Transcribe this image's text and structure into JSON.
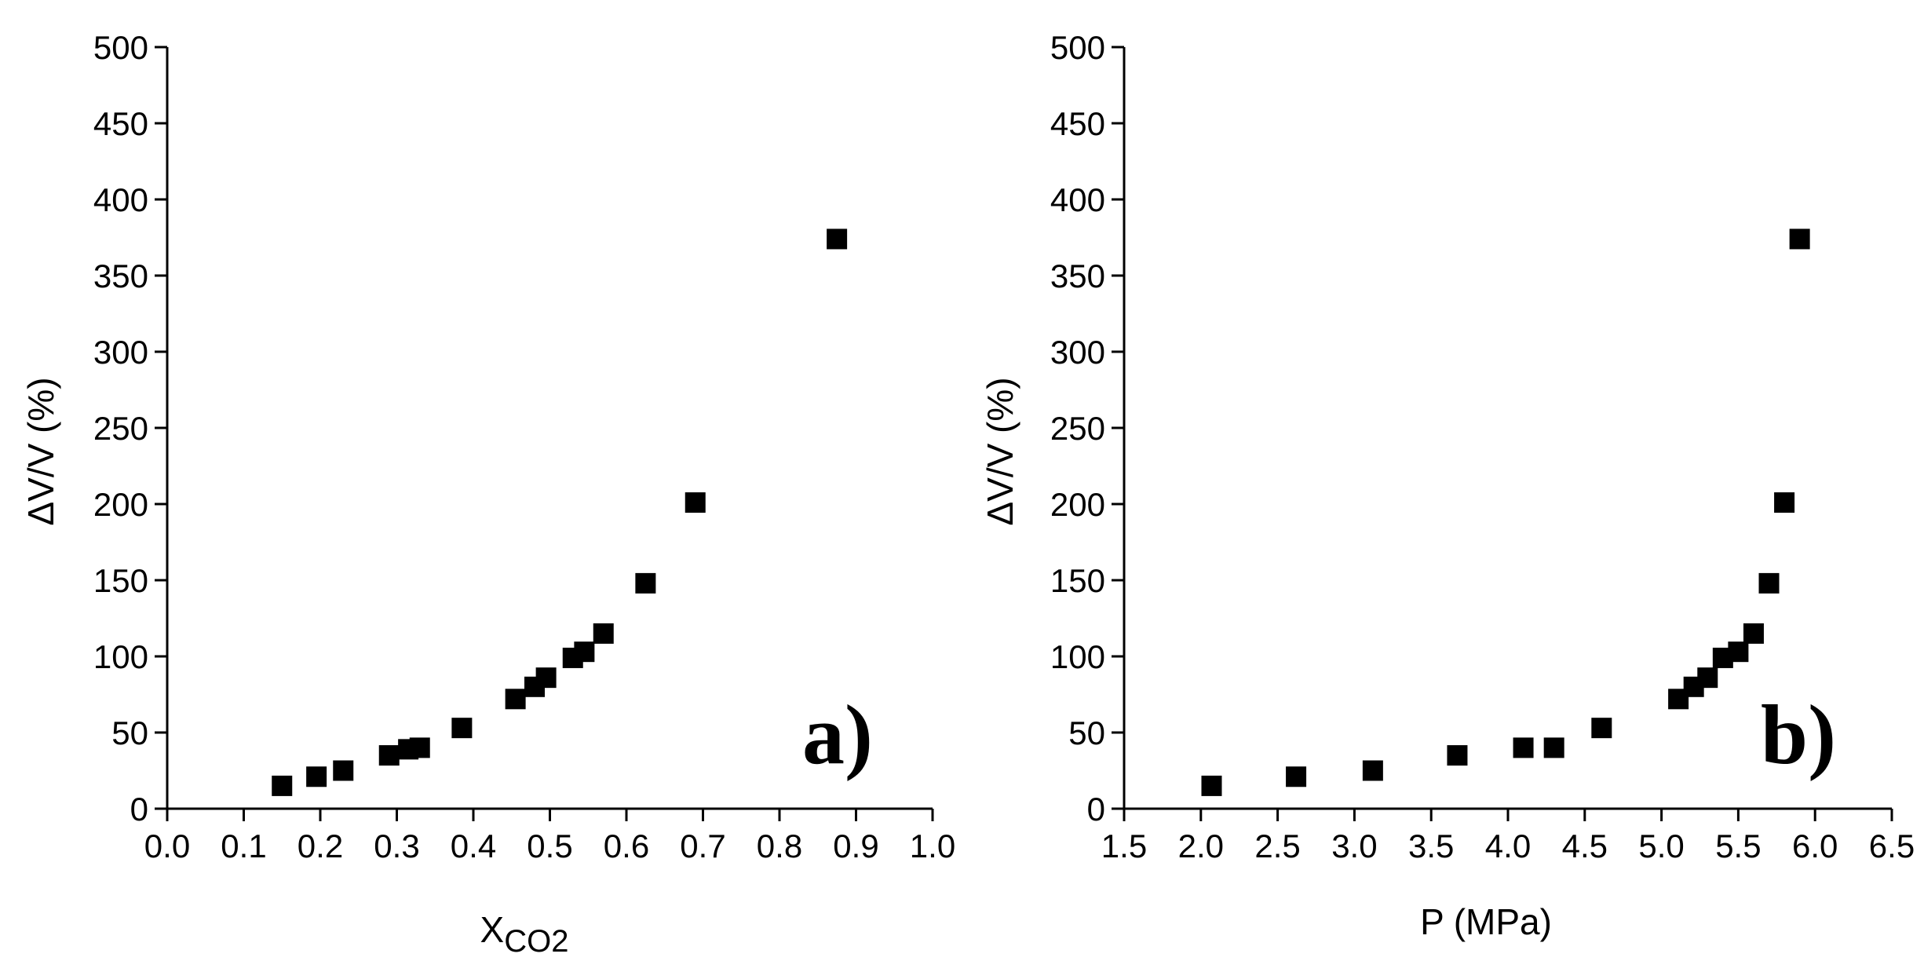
{
  "chart_data": [
    {
      "type": "scatter",
      "panel_label": "a)",
      "xlabel": "X",
      "xlabel_sub": "CO2",
      "ylabel": "ΔV/V (%)",
      "xlim": [
        0.0,
        1.0
      ],
      "ylim": [
        0,
        500
      ],
      "xticks": [
        "0.0",
        "0.1",
        "0.2",
        "0.3",
        "0.4",
        "0.5",
        "0.6",
        "0.7",
        "0.8",
        "0.9",
        "1.0"
      ],
      "yticks": [
        "0",
        "50",
        "100",
        "150",
        "200",
        "250",
        "300",
        "350",
        "400",
        "450",
        "500"
      ],
      "grid": false,
      "marker": "filled-square",
      "marker_color": "#000000",
      "x": [
        0.15,
        0.195,
        0.23,
        0.29,
        0.315,
        0.33,
        0.385,
        0.455,
        0.48,
        0.495,
        0.53,
        0.545,
        0.57,
        0.625,
        0.69,
        0.875
      ],
      "y": [
        15,
        21,
        25,
        35,
        39,
        40,
        53,
        72,
        80,
        86,
        99,
        103,
        115,
        148,
        201,
        374
      ]
    },
    {
      "type": "scatter",
      "panel_label": "b)",
      "xlabel": "P (MPa)",
      "ylabel": "ΔV/V (%)",
      "xlim": [
        1.5,
        6.5
      ],
      "ylim": [
        0,
        500
      ],
      "xticks": [
        "1.5",
        "2.0",
        "2.5",
        "3.0",
        "3.5",
        "4.0",
        "4.5",
        "5.0",
        "5.5",
        "6.0",
        "6.5"
      ],
      "yticks": [
        "0",
        "50",
        "100",
        "150",
        "200",
        "250",
        "300",
        "350",
        "400",
        "450",
        "500"
      ],
      "grid": false,
      "marker": "filled-square",
      "marker_color": "#000000",
      "x": [
        2.07,
        2.62,
        3.12,
        3.67,
        4.1,
        4.3,
        4.61,
        5.11,
        5.21,
        5.3,
        5.4,
        5.5,
        5.6,
        5.7,
        5.8,
        5.9
      ],
      "y": [
        15,
        21,
        25,
        35,
        40,
        40,
        53,
        72,
        80,
        86,
        99,
        103,
        115,
        148,
        201,
        374
      ]
    }
  ]
}
